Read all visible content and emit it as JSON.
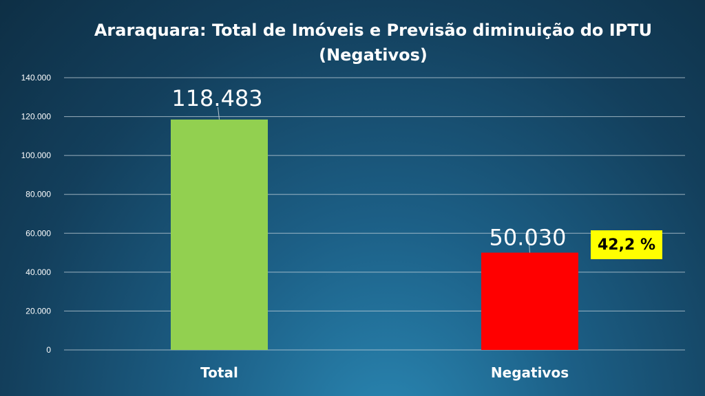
{
  "chart_data": {
    "type": "bar",
    "title": "Araraquara: Total de Imóveis  e Previsão diminuição do IPTU",
    "subtitle": "(Negativos)",
    "categories": [
      "Total",
      "Negativos"
    ],
    "values": [
      118483,
      50030
    ],
    "data_labels": [
      "118.483",
      "50.030"
    ],
    "bar_colors": [
      "#92d050",
      "#ff0000"
    ],
    "ylim": [
      0,
      140000
    ],
    "yticks": [
      0,
      20000,
      40000,
      60000,
      80000,
      100000,
      120000,
      140000
    ],
    "ytick_labels": [
      "0",
      "20.000",
      "40.000",
      "60.000",
      "80.000",
      "100.000",
      "120.000",
      "140.000"
    ],
    "grid": true,
    "xlabel": "",
    "ylabel": "",
    "annotation": {
      "text": "42,2 %",
      "color": "#ffff00"
    }
  }
}
